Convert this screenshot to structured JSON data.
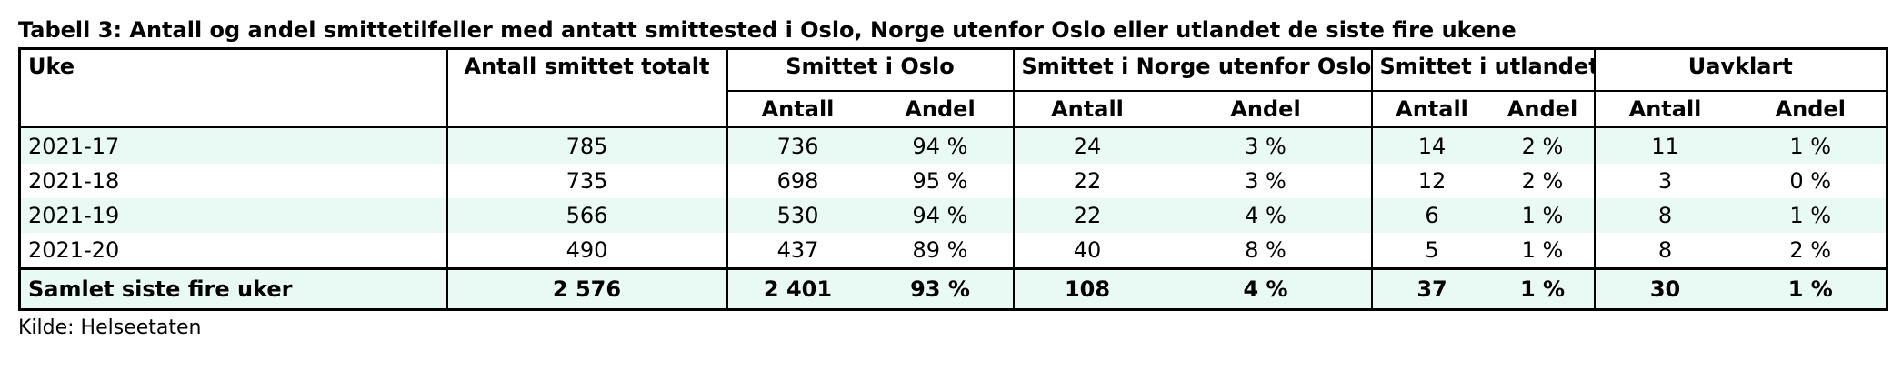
{
  "title": "Tabell 3: Antall og andel smittetilfeller med antatt smittested i Oslo, Norge utenfor Oslo eller utlandet de siste fire ukene",
  "headers": {
    "uke": "Uke",
    "total": "Antall smittet totalt",
    "oslo": "Smittet i Oslo",
    "norge": "Smittet i Norge utenfor Oslo",
    "utland": "Smittet i utlandet",
    "uavklart": "Uavklart",
    "antall": "Antall",
    "andel": "Andel"
  },
  "rows": [
    {
      "uke": "2021-17",
      "total": "785",
      "oslo_antall": "736",
      "oslo_andel": "94 %",
      "norge_antall": "24",
      "norge_andel": "3 %",
      "utland_antall": "14",
      "utland_andel": "2 %",
      "uavklart_antall": "11",
      "uavklart_andel": "1 %"
    },
    {
      "uke": "2021-18",
      "total": "735",
      "oslo_antall": "698",
      "oslo_andel": "95 %",
      "norge_antall": "22",
      "norge_andel": "3 %",
      "utland_antall": "12",
      "utland_andel": "2 %",
      "uavklart_antall": "3",
      "uavklart_andel": "0 %"
    },
    {
      "uke": "2021-19",
      "total": "566",
      "oslo_antall": "530",
      "oslo_andel": "94 %",
      "norge_antall": "22",
      "norge_andel": "4 %",
      "utland_antall": "6",
      "utland_andel": "1 %",
      "uavklart_antall": "8",
      "uavklart_andel": "1 %"
    },
    {
      "uke": "2021-20",
      "total": "490",
      "oslo_antall": "437",
      "oslo_andel": "89 %",
      "norge_antall": "40",
      "norge_andel": "8 %",
      "utland_antall": "5",
      "utland_andel": "1 %",
      "uavklart_antall": "8",
      "uavklart_andel": "2 %"
    }
  ],
  "total_row": {
    "uke": "Samlet siste fire uker",
    "total": "2 576",
    "oslo_antall": "2 401",
    "oslo_andel": "93 %",
    "norge_antall": "108",
    "norge_andel": "4 %",
    "utland_antall": "37",
    "utland_andel": "1 %",
    "uavklart_antall": "30",
    "uavklart_andel": "1 %"
  },
  "source": "Kilde: Helseetaten",
  "colors": {
    "row_highlight": "#e8faf3",
    "border": "#000000"
  }
}
